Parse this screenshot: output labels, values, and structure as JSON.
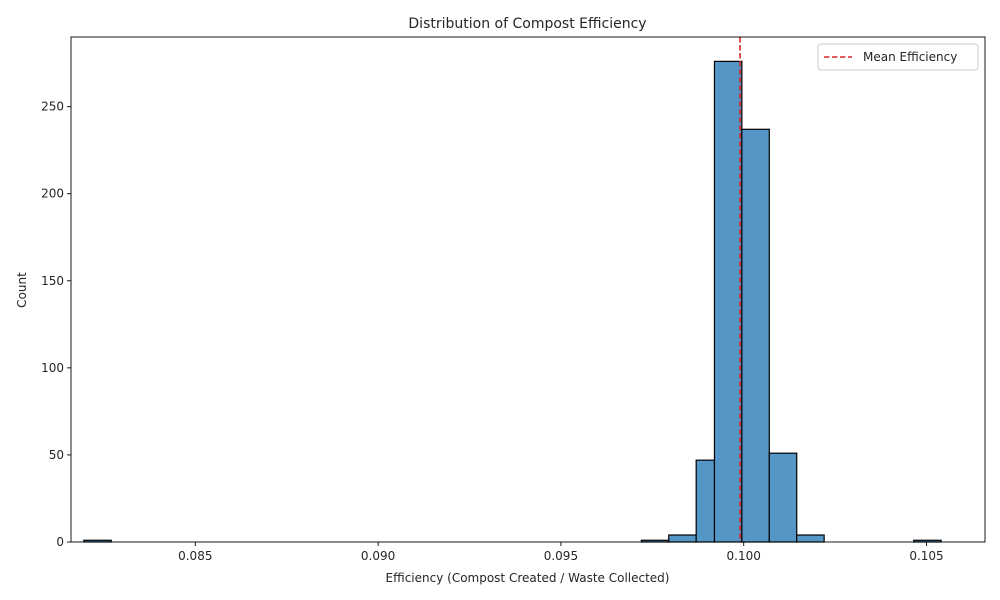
{
  "chart_data": {
    "type": "bar",
    "title": "Distribution of Compost Efficiency",
    "xlabel": "Efficiency (Compost Created / Waste Collected)",
    "ylabel": "Count",
    "xlim": [
      0.0816,
      0.1066
    ],
    "ylim": [
      0,
      290
    ],
    "x_ticks": [
      0.085,
      0.09,
      0.095,
      0.1,
      0.105
    ],
    "x_tick_labels": [
      "0.085",
      "0.090",
      "0.095",
      "0.100",
      "0.105"
    ],
    "y_ticks": [
      0,
      50,
      100,
      150,
      200,
      250
    ],
    "y_tick_labels": [
      "0",
      "50",
      "100",
      "150",
      "200",
      "250"
    ],
    "grid": false,
    "bin_edges": [
      0.08195,
      0.0827,
      0.0972,
      0.09795,
      0.0987,
      0.0992,
      0.09995,
      0.1007,
      0.10145,
      0.1022,
      0.10465,
      0.1054
    ],
    "bins": [
      {
        "x0": 0.08195,
        "x1": 0.0827,
        "count": 1
      },
      {
        "x0": 0.0972,
        "x1": 0.09795,
        "count": 1
      },
      {
        "x0": 0.09795,
        "x1": 0.0987,
        "count": 4
      },
      {
        "x0": 0.0987,
        "x1": 0.0992,
        "count": 47
      },
      {
        "x0": 0.0992,
        "x1": 0.09995,
        "count": 276
      },
      {
        "x0": 0.09995,
        "x1": 0.1007,
        "count": 237
      },
      {
        "x0": 0.1007,
        "x1": 0.10145,
        "count": 51
      },
      {
        "x0": 0.10145,
        "x1": 0.1022,
        "count": 4
      },
      {
        "x0": 0.10465,
        "x1": 0.1054,
        "count": 1
      }
    ],
    "mean_line": {
      "value": 0.0999,
      "label": "Mean Efficiency",
      "color": "#d62728",
      "style": "dashed"
    },
    "bar_color": "#5497c7",
    "bar_edge_color": "#000000",
    "legend": {
      "location": "upper right",
      "entries": [
        "Mean Efficiency"
      ]
    }
  }
}
